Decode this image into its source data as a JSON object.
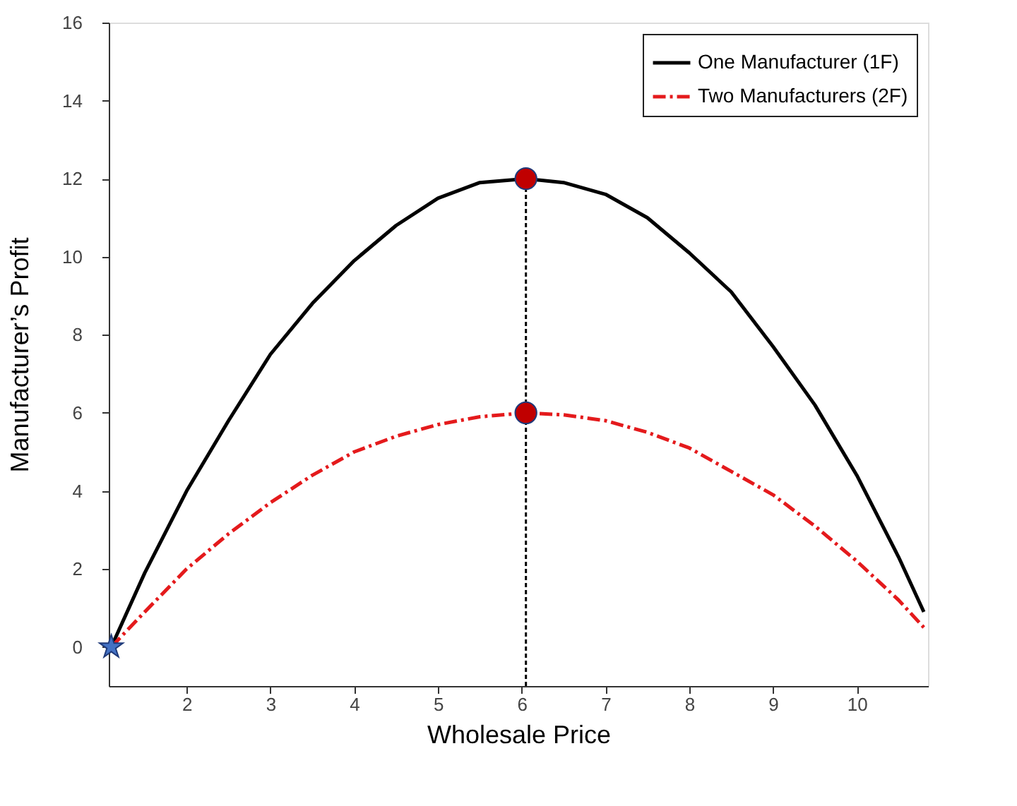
{
  "chart_data": {
    "type": "line",
    "xlabel": "Wholesale Price",
    "ylabel": "Manufacturer’s Profit",
    "xlim": [
      1.07,
      10.85
    ],
    "ylim": [
      -1,
      16
    ],
    "xticks": [
      2,
      3,
      4,
      5,
      6,
      7,
      8,
      9,
      10
    ],
    "yticks": [
      0,
      2,
      4,
      6,
      8,
      10,
      12,
      14,
      16
    ],
    "grid": false,
    "legend": "top right",
    "series": [
      {
        "name": "One Manufacturer (1F)",
        "color": "#000000",
        "line_style": "solid",
        "x": [
          1.1,
          1.5,
          2,
          2.5,
          3,
          3.5,
          4,
          4.5,
          5,
          5.5,
          6.05,
          6.5,
          7,
          7.5,
          8,
          8.5,
          9,
          9.5,
          10,
          10.5,
          10.8
        ],
        "values": [
          0.0,
          1.9,
          4.0,
          5.8,
          7.5,
          8.8,
          9.9,
          10.8,
          11.5,
          11.9,
          12,
          11.9,
          11.6,
          11.0,
          10.1,
          9.1,
          7.7,
          6.2,
          4.4,
          2.3,
          0.9
        ]
      },
      {
        "name": "Two Manufacturers (2F)",
        "color": "#e41a1c",
        "line_style": "dashed",
        "x": [
          1.1,
          1.5,
          2,
          2.5,
          3,
          3.5,
          4,
          4.5,
          5,
          5.5,
          6.05,
          6.5,
          7,
          7.5,
          8,
          8.5,
          9,
          9.5,
          10,
          10.5,
          10.8
        ],
        "values": [
          0.0,
          0.9,
          2.0,
          2.9,
          3.7,
          4.4,
          5.0,
          5.4,
          5.7,
          5.9,
          6,
          5.95,
          5.8,
          5.5,
          5.1,
          4.5,
          3.9,
          3.1,
          2.2,
          1.2,
          0.5
        ]
      },
      {
        "color": "#000000",
        "line_style": "dotted",
        "x": [
          6.05,
          6.05
        ],
        "values": [
          -1,
          12
        ]
      },
      {
        "type": "scatter",
        "color": "#c00000",
        "marker": "circle",
        "x": [
          6.05,
          6.05
        ],
        "values": [
          12,
          6
        ]
      },
      {
        "type": "scatter",
        "color": "#4472c4",
        "marker": "star",
        "x": [
          1.1
        ],
        "values": [
          0
        ]
      }
    ]
  }
}
